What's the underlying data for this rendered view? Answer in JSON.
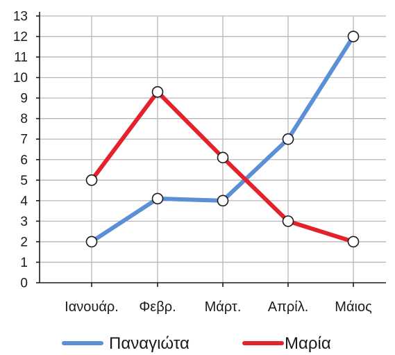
{
  "chart_data": {
    "type": "line",
    "title": "",
    "xlabel": "",
    "ylabel": "",
    "categories": [
      "Ιανουάρ.",
      "Φεβρ.",
      "Μάρτ.",
      "Απρίλ.",
      "Μάιος"
    ],
    "ylim": [
      0,
      13
    ],
    "yticks": [
      0,
      1,
      2,
      3,
      4,
      5,
      6,
      7,
      8,
      9,
      10,
      11,
      12,
      13
    ],
    "grid": true,
    "legend_position": "bottom",
    "series": [
      {
        "name": "Παναγιώτα",
        "color": "#5b8fd6",
        "values": [
          2,
          4.1,
          4,
          7,
          12
        ]
      },
      {
        "name": "Μαρία",
        "color": "#e3222c",
        "values": [
          5,
          9.3,
          6.1,
          3,
          2
        ]
      }
    ]
  }
}
